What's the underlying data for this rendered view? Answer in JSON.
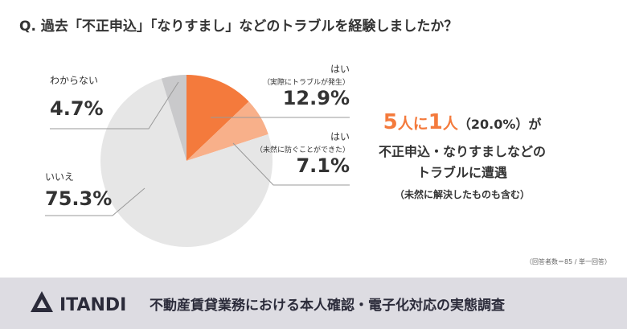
{
  "title": "Q. 過去「不正申込」「なりすまし」などのトラブルを経験しましたか？",
  "chart_data": {
    "type": "pie",
    "categories": [
      "はい",
      "はい",
      "いいえ",
      "わからない"
    ],
    "sublabels": [
      "（実際にトラブルが発生）",
      "（未然に防ぐことができた）",
      null,
      null
    ],
    "values": [
      12.9,
      7.1,
      75.3,
      4.7
    ],
    "value_labels": [
      "12.9%",
      "7.1%",
      "75.3%",
      "4.7%"
    ],
    "colors": [
      "#f47a3c",
      "#f8b08a",
      "#e6e6e6",
      "#c9c9cb"
    ]
  },
  "highlight": [
    "5",
    "人に",
    "1",
    "人",
    "（20.0%）",
    "が"
  ],
  "summary": [
    "不正申込・なりすましなどの",
    "トラブルに遭遇",
    "（未然に解決したものも含む）"
  ],
  "note": "（回答者数＝85 / 単一回答）",
  "footer": {
    "logo": "ITANDI",
    "text": "不動産賃貸業務における本人確認・電子化対応の実態調査"
  }
}
